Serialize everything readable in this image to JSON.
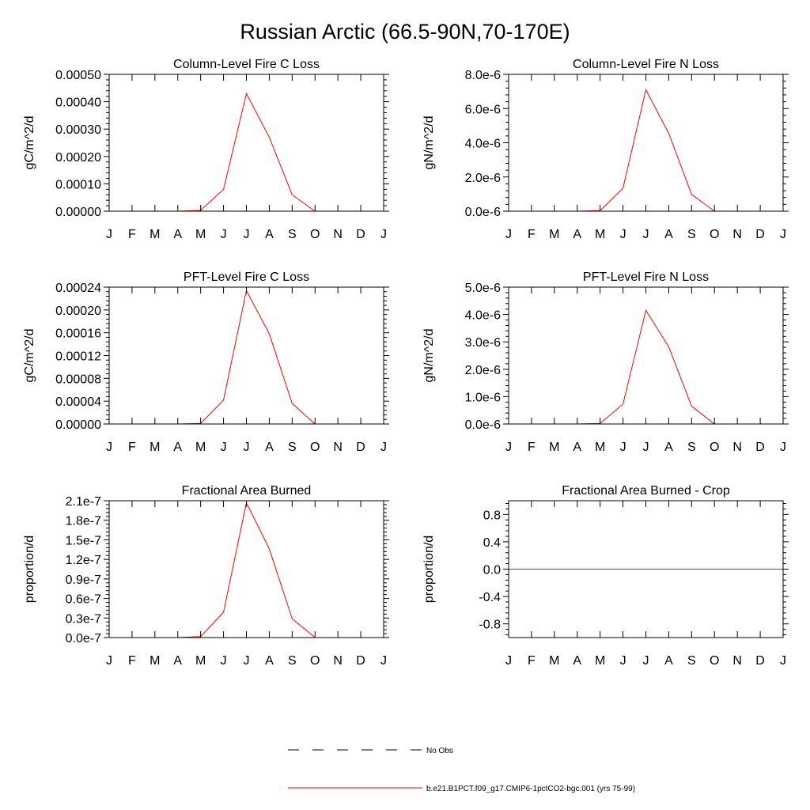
{
  "figure": {
    "title": "Russian Arctic (66.5-90N,70-170E)"
  },
  "months": [
    "J",
    "F",
    "M",
    "A",
    "M",
    "J",
    "J",
    "A",
    "S",
    "O",
    "N",
    "D",
    "J"
  ],
  "legend": {
    "entries": [
      {
        "label": "No Obs",
        "style": "dashed",
        "color": "#000000"
      },
      {
        "label": "b.e21.B1PCT.f09_g17.CMIP6-1pctCO2-bgc.001 (yrs 75-99)",
        "style": "solid",
        "color": "#ff0000"
      }
    ]
  },
  "chart_data": [
    {
      "type": "line",
      "title": "Column-Level Fire C Loss",
      "ylabel": "gC/m^2/d",
      "ylim": [
        0,
        0.0005
      ],
      "yticks": [
        0,
        0.0001,
        0.0002,
        0.0003,
        0.0004,
        0.0005
      ],
      "yticklabels": [
        "0.00000",
        "0.00010",
        "0.00020",
        "0.00030",
        "0.00040",
        "0.00050"
      ],
      "x": [
        "J",
        "F",
        "M",
        "A",
        "M",
        "J",
        "J",
        "A",
        "S",
        "O",
        "N",
        "D",
        "J"
      ],
      "series": [
        {
          "values": [
            0,
            0,
            0,
            0,
            3e-06,
            8e-05,
            0.00043,
            0.00027,
            6e-05,
            0,
            0,
            0,
            0
          ],
          "color": "#ff0000"
        }
      ]
    },
    {
      "type": "line",
      "title": "Column-Level Fire N Loss",
      "ylabel": "gN/m^2/d",
      "ylim": [
        0,
        8e-06
      ],
      "yticks": [
        0,
        2e-06,
        4e-06,
        6e-06,
        8e-06
      ],
      "yticklabels": [
        "0.0e-6",
        "2.0e-6",
        "4.0e-6",
        "6.0e-6",
        "8.0e-6"
      ],
      "x": [
        "J",
        "F",
        "M",
        "A",
        "M",
        "J",
        "J",
        "A",
        "S",
        "O",
        "N",
        "D",
        "J"
      ],
      "series": [
        {
          "values": [
            0,
            0,
            0,
            0,
            4e-08,
            1.35e-06,
            7.1e-06,
            4.55e-06,
            9.8e-07,
            0,
            0,
            0,
            0
          ],
          "color": "#ff0000"
        }
      ]
    },
    {
      "type": "line",
      "title": "PFT-Level Fire C Loss",
      "ylabel": "gC/m^2/d",
      "ylim": [
        0,
        0.00024
      ],
      "yticks": [
        0,
        4e-05,
        8e-05,
        0.00012,
        0.00016,
        0.0002,
        0.00024
      ],
      "yticklabels": [
        "0.00000",
        "0.00004",
        "0.00008",
        "0.00012",
        "0.00016",
        "0.00020",
        "0.00024"
      ],
      "x": [
        "J",
        "F",
        "M",
        "A",
        "M",
        "J",
        "J",
        "A",
        "S",
        "O",
        "N",
        "D",
        "J"
      ],
      "series": [
        {
          "values": [
            0,
            0,
            0,
            0,
            1e-06,
            4.2e-05,
            0.000234,
            0.000158,
            3.6e-05,
            0,
            0,
            0,
            0
          ],
          "color": "#ff0000"
        }
      ]
    },
    {
      "type": "line",
      "title": "PFT-Level Fire N Loss",
      "ylabel": "gN/m^2/d",
      "ylim": [
        0,
        5e-06
      ],
      "yticks": [
        0,
        1e-06,
        2e-06,
        3e-06,
        4e-06,
        5e-06
      ],
      "yticklabels": [
        "0.0e-6",
        "1.0e-6",
        "2.0e-6",
        "3.0e-6",
        "4.0e-6",
        "5.0e-6"
      ],
      "x": [
        "J",
        "F",
        "M",
        "A",
        "M",
        "J",
        "J",
        "A",
        "S",
        "O",
        "N",
        "D",
        "J"
      ],
      "series": [
        {
          "values": [
            0,
            0,
            0,
            0,
            2e-08,
            7.3e-07,
            4.15e-06,
            2.82e-06,
            6.5e-07,
            0,
            0,
            0,
            0
          ],
          "color": "#ff0000"
        }
      ]
    },
    {
      "type": "line",
      "title": "Fractional Area Burned",
      "ylabel": "proportion/d",
      "ylim": [
        0,
        2.1e-07
      ],
      "yticks": [
        0,
        3e-08,
        6e-08,
        9e-08,
        1.2e-07,
        1.5e-07,
        1.8e-07,
        2.1e-07
      ],
      "yticklabels": [
        "0.0e-7",
        "0.3e-7",
        "0.6e-7",
        "0.9e-7",
        "1.2e-7",
        "1.5e-7",
        "1.8e-7",
        "2.1e-7"
      ],
      "x": [
        "J",
        "F",
        "M",
        "A",
        "M",
        "J",
        "J",
        "A",
        "S",
        "O",
        "N",
        "D",
        "J"
      ],
      "series": [
        {
          "values": [
            0,
            0,
            0,
            0,
            1.5e-09,
            3.9e-08,
            2.07e-07,
            1.36e-07,
            2.9e-08,
            0,
            0,
            0,
            0
          ],
          "color": "#ff0000"
        }
      ]
    },
    {
      "type": "line",
      "title": "Fractional Area Burned - Crop",
      "ylabel": "proportion/d",
      "ylim": [
        -1,
        1
      ],
      "yticks": [
        -0.8,
        -0.4,
        0,
        0.4,
        0.8
      ],
      "yticklabels": [
        "-0.8",
        "-0.4",
        "0.0",
        "0.4",
        "0.8"
      ],
      "x": [
        "J",
        "F",
        "M",
        "A",
        "M",
        "J",
        "J",
        "A",
        "S",
        "O",
        "N",
        "D",
        "J"
      ],
      "series": [
        {
          "values": [
            0,
            0,
            0,
            0,
            0,
            0,
            0,
            0,
            0,
            0,
            0,
            0,
            0
          ],
          "color": "#ff0000"
        }
      ]
    }
  ]
}
